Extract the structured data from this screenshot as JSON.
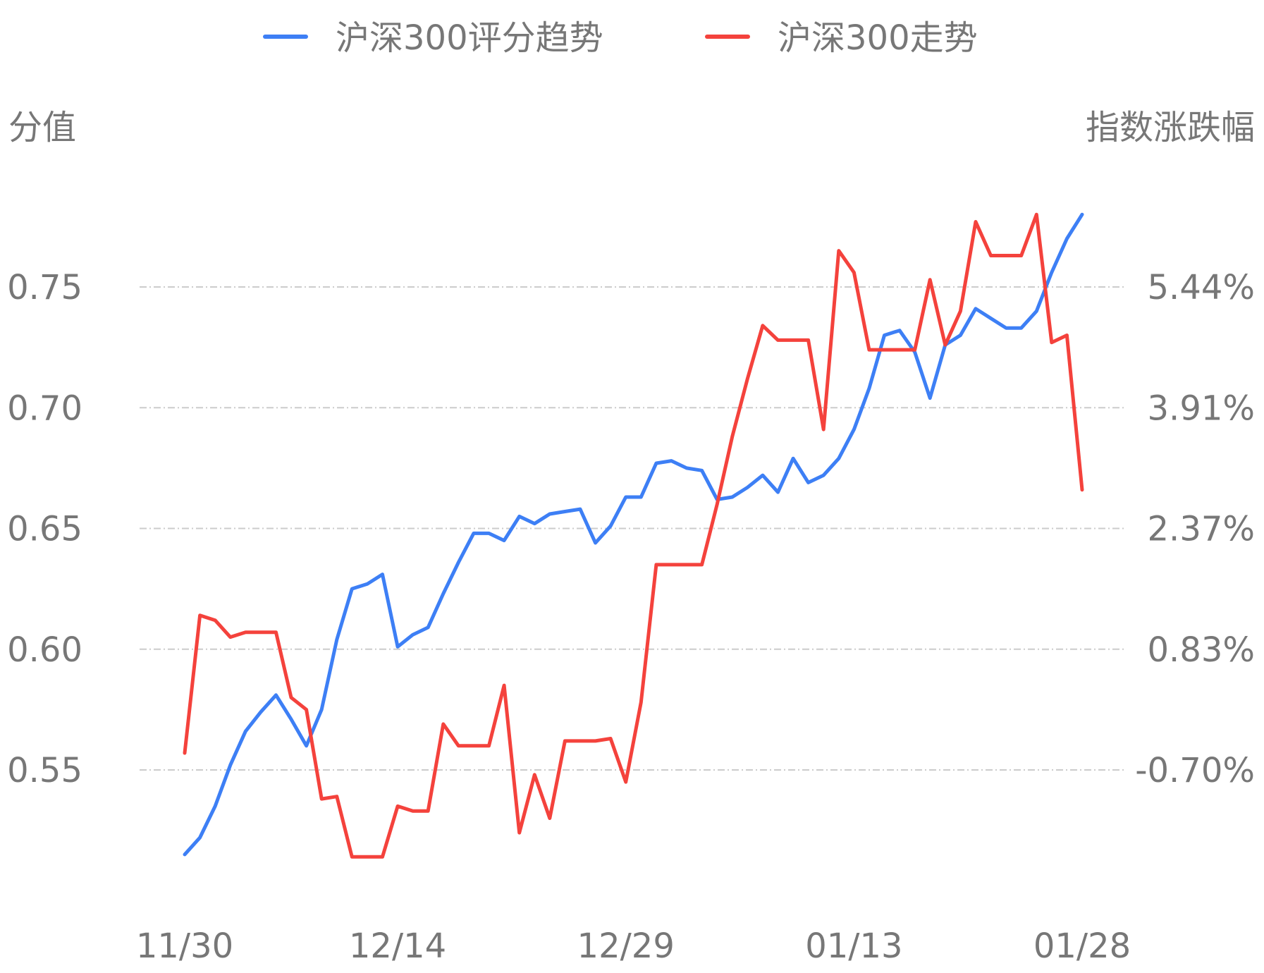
{
  "chart_data": {
    "type": "line",
    "legend": {
      "position": "top-center",
      "items": [
        {
          "name": "沪深300评分趋势",
          "color": "#3d7ff5"
        },
        {
          "name": "沪深300走势",
          "color": "#f4423c"
        }
      ]
    },
    "ylabel_left": "分值",
    "ylabel_right": "指数涨跌幅",
    "y_left_ticks": [
      "0.55",
      "0.60",
      "0.65",
      "0.70",
      "0.75"
    ],
    "y_left_range": [
      0.5,
      0.8
    ],
    "y_right_ticks": [
      "-0.70%",
      "0.83%",
      "2.37%",
      "3.91%",
      "5.44%"
    ],
    "y_right_range": [
      -2.23,
      6.97
    ],
    "x_ticks": [
      "11/30",
      "12/14",
      "12/29",
      "01/13",
      "01/28"
    ],
    "x_tick_index": [
      0,
      14,
      29,
      44,
      59
    ],
    "grid": true,
    "series": [
      {
        "name": "沪深300评分趋势",
        "color": "#3d7ff5",
        "axis": "left",
        "values": [
          0.515,
          0.522,
          0.535,
          0.552,
          0.566,
          0.574,
          0.581,
          0.571,
          0.56,
          0.575,
          0.604,
          0.625,
          0.627,
          0.631,
          0.601,
          0.606,
          0.609,
          0.623,
          0.636,
          0.648,
          0.648,
          0.645,
          0.655,
          0.652,
          0.656,
          0.657,
          0.658,
          0.644,
          0.651,
          0.663,
          0.663,
          0.677,
          0.678,
          0.675,
          0.674,
          0.662,
          0.663,
          0.667,
          0.672,
          0.665,
          0.679,
          0.669,
          0.672,
          0.679,
          0.691,
          0.708,
          0.73,
          0.732,
          0.723,
          0.704,
          0.726,
          0.73,
          0.741,
          0.737,
          0.733,
          0.733,
          0.74,
          0.756,
          0.77,
          0.78
        ]
      },
      {
        "name": "沪深300走势",
        "color": "#f4423c",
        "axis": "left",
        "values": [
          0.557,
          0.614,
          0.612,
          0.605,
          0.607,
          0.607,
          0.607,
          0.58,
          0.575,
          0.538,
          0.539,
          0.514,
          0.514,
          0.514,
          0.535,
          0.533,
          0.533,
          0.569,
          0.56,
          0.56,
          0.56,
          0.585,
          0.524,
          0.548,
          0.53,
          0.562,
          0.562,
          0.562,
          0.563,
          0.545,
          0.578,
          0.635,
          0.635,
          0.635,
          0.635,
          0.66,
          0.688,
          0.712,
          0.734,
          0.728,
          0.728,
          0.728,
          0.691,
          0.765,
          0.756,
          0.724,
          0.724,
          0.724,
          0.724,
          0.753,
          0.726,
          0.74,
          0.777,
          0.763,
          0.763,
          0.763,
          0.78,
          0.727,
          0.73,
          0.666
        ]
      }
    ]
  }
}
